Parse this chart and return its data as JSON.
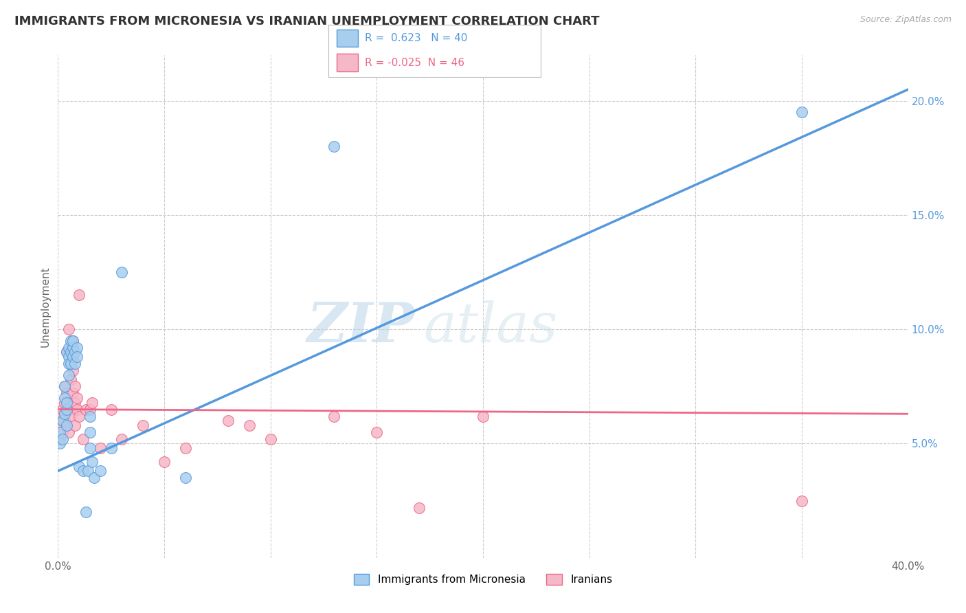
{
  "title": "IMMIGRANTS FROM MICRONESIA VS IRANIAN UNEMPLOYMENT CORRELATION CHART",
  "source": "Source: ZipAtlas.com",
  "ylabel": "Unemployment",
  "legend1_label": "Immigrants from Micronesia",
  "legend2_label": "Iranians",
  "R1": 0.623,
  "N1": 40,
  "R2": -0.025,
  "N2": 46,
  "color_blue": "#A8CEEE",
  "color_pink": "#F5B8C8",
  "color_blue_line": "#5599DD",
  "color_pink_line": "#EE6688",
  "color_title": "#333333",
  "color_source": "#aaaaaa",
  "color_grid": "#cccccc",
  "color_watermark": "#c8dff0",
  "blue_points": [
    [
      0.001,
      0.055
    ],
    [
      0.001,
      0.05
    ],
    [
      0.002,
      0.06
    ],
    [
      0.002,
      0.052
    ],
    [
      0.003,
      0.063
    ],
    [
      0.003,
      0.07
    ],
    [
      0.003,
      0.075
    ],
    [
      0.004,
      0.058
    ],
    [
      0.004,
      0.065
    ],
    [
      0.004,
      0.068
    ],
    [
      0.004,
      0.09
    ],
    [
      0.005,
      0.08
    ],
    [
      0.005,
      0.088
    ],
    [
      0.005,
      0.085
    ],
    [
      0.005,
      0.092
    ],
    [
      0.006,
      0.085
    ],
    [
      0.006,
      0.09
    ],
    [
      0.006,
      0.095
    ],
    [
      0.007,
      0.088
    ],
    [
      0.007,
      0.092
    ],
    [
      0.007,
      0.095
    ],
    [
      0.008,
      0.09
    ],
    [
      0.008,
      0.085
    ],
    [
      0.009,
      0.092
    ],
    [
      0.009,
      0.088
    ],
    [
      0.01,
      0.04
    ],
    [
      0.012,
      0.038
    ],
    [
      0.013,
      0.02
    ],
    [
      0.014,
      0.038
    ],
    [
      0.015,
      0.048
    ],
    [
      0.015,
      0.055
    ],
    [
      0.015,
      0.062
    ],
    [
      0.016,
      0.042
    ],
    [
      0.017,
      0.035
    ],
    [
      0.02,
      0.038
    ],
    [
      0.025,
      0.048
    ],
    [
      0.03,
      0.125
    ],
    [
      0.06,
      0.035
    ],
    [
      0.13,
      0.18
    ],
    [
      0.35,
      0.195
    ]
  ],
  "pink_points": [
    [
      0.001,
      0.058
    ],
    [
      0.001,
      0.062
    ],
    [
      0.001,
      0.052
    ],
    [
      0.002,
      0.055
    ],
    [
      0.002,
      0.065
    ],
    [
      0.002,
      0.06
    ],
    [
      0.003,
      0.068
    ],
    [
      0.003,
      0.06
    ],
    [
      0.003,
      0.075
    ],
    [
      0.004,
      0.072
    ],
    [
      0.004,
      0.058
    ],
    [
      0.004,
      0.09
    ],
    [
      0.005,
      0.065
    ],
    [
      0.005,
      0.055
    ],
    [
      0.005,
      0.1
    ],
    [
      0.006,
      0.085
    ],
    [
      0.006,
      0.078
    ],
    [
      0.006,
      0.062
    ],
    [
      0.007,
      0.072
    ],
    [
      0.007,
      0.095
    ],
    [
      0.007,
      0.082
    ],
    [
      0.008,
      0.068
    ],
    [
      0.008,
      0.075
    ],
    [
      0.008,
      0.058
    ],
    [
      0.009,
      0.065
    ],
    [
      0.009,
      0.07
    ],
    [
      0.01,
      0.115
    ],
    [
      0.01,
      0.062
    ],
    [
      0.012,
      0.052
    ],
    [
      0.013,
      0.065
    ],
    [
      0.015,
      0.065
    ],
    [
      0.016,
      0.068
    ],
    [
      0.02,
      0.048
    ],
    [
      0.025,
      0.065
    ],
    [
      0.03,
      0.052
    ],
    [
      0.04,
      0.058
    ],
    [
      0.05,
      0.042
    ],
    [
      0.06,
      0.048
    ],
    [
      0.08,
      0.06
    ],
    [
      0.09,
      0.058
    ],
    [
      0.1,
      0.052
    ],
    [
      0.13,
      0.062
    ],
    [
      0.15,
      0.055
    ],
    [
      0.17,
      0.022
    ],
    [
      0.2,
      0.062
    ],
    [
      0.35,
      0.025
    ]
  ],
  "blue_trendline": [
    0.0,
    0.038,
    0.4,
    0.205
  ],
  "pink_trendline": [
    0.0,
    0.065,
    0.4,
    0.063
  ],
  "xlim": [
    0.0,
    0.4
  ],
  "ylim": [
    0.0,
    0.22
  ],
  "xtick_minor": [
    0.05,
    0.1,
    0.15,
    0.2,
    0.25,
    0.3,
    0.35
  ],
  "xtick_labels_pos": [
    0.0,
    0.4
  ],
  "xtick_labels": [
    "0.0%",
    "40.0%"
  ],
  "yticks": [
    0.05,
    0.1,
    0.15,
    0.2
  ],
  "ytick_labels": [
    "5.0%",
    "10.0%",
    "15.0%",
    "20.0%"
  ]
}
